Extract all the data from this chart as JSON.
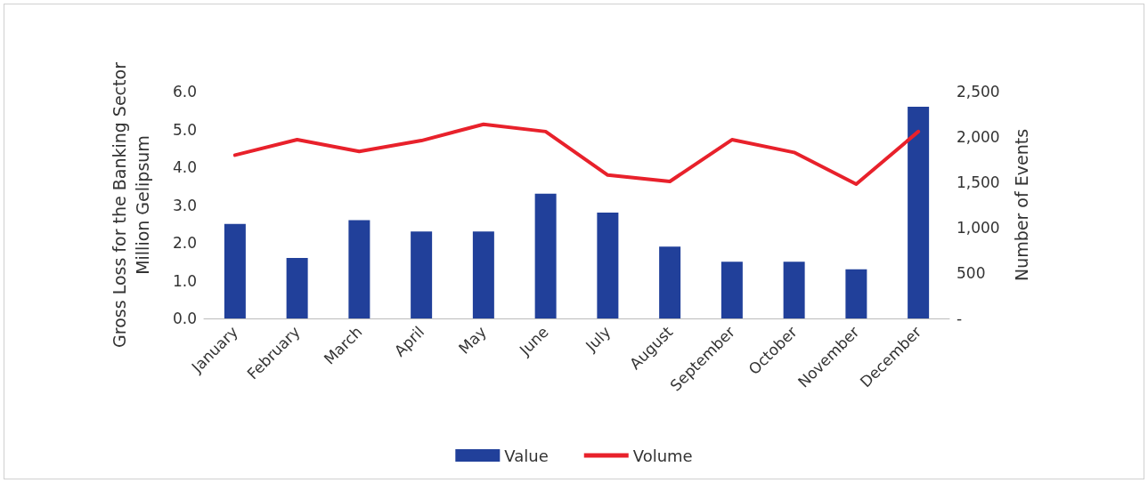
{
  "chart_data": {
    "type": "bar",
    "ylabel": "Gross Loss for the Banking Sector\nMillion Gelipsum",
    "y2label": "Number of Events",
    "categories": [
      "January",
      "February",
      "March",
      "April",
      "May",
      "June",
      "July",
      "August",
      "September",
      "October",
      "November",
      "December"
    ],
    "series": [
      {
        "name": "Value",
        "color": "#21409a",
        "values": [
          2.5,
          1.6,
          2.6,
          2.3,
          2.3,
          3.3,
          2.8,
          1.9,
          1.5,
          1.5,
          1.3,
          5.6
        ]
      },
      {
        "name": "Volume",
        "type": "line",
        "axis": "y2",
        "color": "#e8212b",
        "values": [
          1800,
          1970,
          1840,
          1960,
          2140,
          2060,
          1580,
          1510,
          1970,
          1830,
          1480,
          2060
        ]
      }
    ],
    "ylim": [
      0,
      6
    ],
    "yticks": [
      {
        "value": 0,
        "label": "0.0"
      },
      {
        "value": 1,
        "label": "1.0"
      },
      {
        "value": 2,
        "label": "2.0"
      },
      {
        "value": 3,
        "label": "3.0"
      },
      {
        "value": 4,
        "label": "4.0"
      },
      {
        "value": 5,
        "label": "5.0"
      },
      {
        "value": 6,
        "label": "6.0"
      }
    ],
    "y2lim": [
      0,
      2500
    ],
    "y2ticks": [
      {
        "value": 0,
        "label": "-"
      },
      500,
      {
        "value": 1000,
        "label": "1,000"
      },
      {
        "value": 1500,
        "label": "1,500"
      },
      {
        "value": 2000,
        "label": "2,000"
      },
      {
        "value": 2500,
        "label": "2,500"
      }
    ],
    "grid": false,
    "legend": "bottom",
    "marker": "none",
    "line_style": "solid"
  }
}
